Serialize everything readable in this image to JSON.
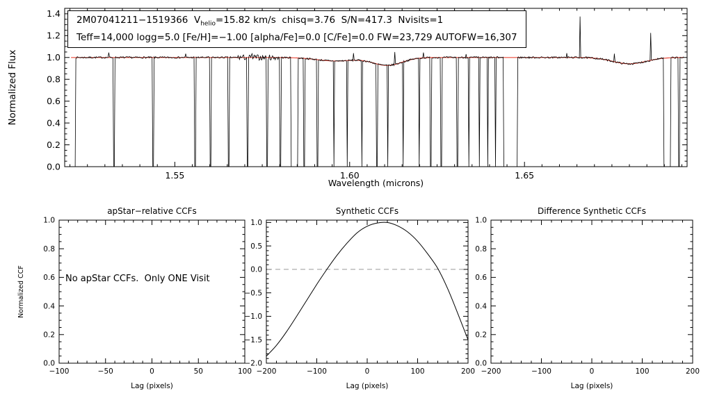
{
  "annotation": {
    "line1_prefix": "2M07041211−1519366  V",
    "line1_sub": "helio",
    "line1_suffix": "=15.82 km/s  chisq=3.76  S/N=417.3  Nvisits=1",
    "line2": "Teff=14,000 logg=5.0 [Fe/H]=−1.00 [alpha/Fe]=0.0 [C/Fe]=0.0 FW=23,729 AUTOFW=16,307"
  },
  "colors": {
    "spectrum": "#000000",
    "model": "#e8483a",
    "zero_dash": "#999999",
    "frame": "#000000"
  },
  "chart_data": [
    {
      "type": "line",
      "title": "",
      "xlabel": "Wavelength (microns)",
      "ylabel": "Normalized Flux",
      "xlim": [
        1.5185,
        1.6965
      ],
      "ylim": [
        0,
        1.45
      ],
      "xticks": [
        1.55,
        1.6,
        1.65
      ],
      "xtick_labels": [
        "1.55",
        "1.60",
        "1.65"
      ],
      "yticks": [
        0,
        0.2,
        0.4,
        0.6,
        0.8,
        1.0,
        1.2,
        1.4
      ],
      "ytick_labels": [
        "0.0",
        "0.2",
        "0.4",
        "0.6",
        "0.8",
        "1.0",
        "1.2",
        "1.4"
      ],
      "spectrum": {
        "x_start": 1.5203,
        "x_end": 1.6955,
        "step": 0.0002,
        "baseline": 1.0,
        "noise_amp": 0.008,
        "noisy_regions": [
          [
            1.568,
            1.5795,
            0.018
          ]
        ],
        "broad_dips": [
          [
            1.596,
            0.032,
            0.0055
          ],
          [
            1.6108,
            0.072,
            0.0042
          ],
          [
            1.68,
            0.058,
            0.0048
          ]
        ],
        "masked_regions": [
          [
            1.52,
            1.5209
          ],
          [
            1.5211,
            1.5215
          ],
          [
            1.5324,
            1.5328
          ],
          [
            1.5436,
            1.544
          ],
          [
            1.5556,
            1.556
          ],
          [
            1.56,
            1.5604
          ],
          [
            1.5652,
            1.5656
          ],
          [
            1.5706,
            1.571
          ],
          [
            1.5762,
            1.5766
          ],
          [
            1.58,
            1.5803
          ],
          [
            1.5832,
            1.5852
          ],
          [
            1.5868,
            1.5871
          ],
          [
            1.5906,
            1.5909
          ],
          [
            1.5953,
            1.5956
          ],
          [
            1.5991,
            1.5994
          ],
          [
            1.6033,
            1.6036
          ],
          [
            1.6076,
            1.6079
          ],
          [
            1.6107,
            1.611
          ],
          [
            1.6151,
            1.6154
          ],
          [
            1.6197,
            1.62
          ],
          [
            1.623,
            1.6233
          ],
          [
            1.626,
            1.6263
          ],
          [
            1.6306,
            1.6309
          ],
          [
            1.6339,
            1.6342
          ],
          [
            1.6369,
            1.6372
          ],
          [
            1.6393,
            1.6396
          ],
          [
            1.6415,
            1.6418
          ],
          [
            1.644,
            1.648
          ],
          [
            1.6897,
            1.6917
          ],
          [
            1.694,
            1.6943
          ]
        ],
        "spikes": [
          [
            1.5312,
            1.045
          ],
          [
            1.5532,
            1.035
          ],
          [
            1.572,
            1.035
          ],
          [
            1.6012,
            1.04
          ],
          [
            1.6128,
            1.05
          ],
          [
            1.6212,
            1.045
          ],
          [
            1.6332,
            1.03
          ],
          [
            1.6622,
            1.04
          ],
          [
            1.666,
            1.375
          ],
          [
            1.6757,
            1.035
          ],
          [
            1.6862,
            1.225
          ]
        ]
      }
    },
    {
      "type": "line",
      "title": "apStar−relative CCFs",
      "xlabel": "Lag (pixels)",
      "ylabel": "Normalized CCF",
      "xlim": [
        -100,
        100
      ],
      "ylim": [
        0,
        1.0
      ],
      "xticks": [
        -100,
        -50,
        0,
        50,
        100
      ],
      "xtick_labels": [
        "−100",
        "−50",
        "0",
        "50",
        "100"
      ],
      "yticks": [
        0,
        0.2,
        0.4,
        0.6,
        0.8,
        1.0
      ],
      "ytick_labels": [
        "0.0",
        "0.2",
        "0.4",
        "0.6",
        "0.8",
        "1.0"
      ],
      "note": "No apStar CCFs.  Only ONE Visit",
      "series": []
    },
    {
      "type": "line",
      "title": "Synthetic CCFs",
      "xlabel": "Lag (pixels)",
      "ylabel": "",
      "xlim": [
        -200,
        200
      ],
      "ylim": [
        -2.0,
        1.05
      ],
      "xticks": [
        -200,
        -100,
        0,
        100,
        200
      ],
      "xtick_labels": [
        "−200",
        "−100",
        "0",
        "100",
        "200"
      ],
      "yticks": [
        -2.0,
        -1.5,
        -1.0,
        -0.5,
        0,
        0.5,
        1.0
      ],
      "ytick_labels": [
        "−2.0",
        "−1.5",
        "−1.0",
        "−0.5",
        "0.0",
        "0.5",
        "1.0"
      ],
      "zero_dashed": true,
      "x": [
        -200,
        -180,
        -160,
        -140,
        -120,
        -100,
        -80,
        -60,
        -40,
        -20,
        0,
        20,
        40,
        60,
        80,
        100,
        120,
        140,
        160,
        180,
        200
      ],
      "y": [
        -1.85,
        -1.62,
        -1.33,
        -1.0,
        -0.66,
        -0.32,
        0.0,
        0.3,
        0.56,
        0.78,
        0.92,
        0.99,
        1.0,
        0.93,
        0.8,
        0.6,
        0.33,
        0.02,
        -0.42,
        -0.95,
        -1.5
      ]
    },
    {
      "type": "line",
      "title": "Difference Synthetic CCFs",
      "xlabel": "Lag (pixels)",
      "ylabel": "",
      "xlim": [
        -200,
        200
      ],
      "ylim": [
        0,
        1.0
      ],
      "xticks": [
        -200,
        -100,
        0,
        100,
        200
      ],
      "xtick_labels": [
        "−200",
        "−100",
        "0",
        "100",
        "200"
      ],
      "yticks": [
        0,
        0.2,
        0.4,
        0.6,
        0.8,
        1.0
      ],
      "ytick_labels": [
        "0.0",
        "0.2",
        "0.4",
        "0.6",
        "0.8",
        "1.0"
      ],
      "series": []
    }
  ]
}
